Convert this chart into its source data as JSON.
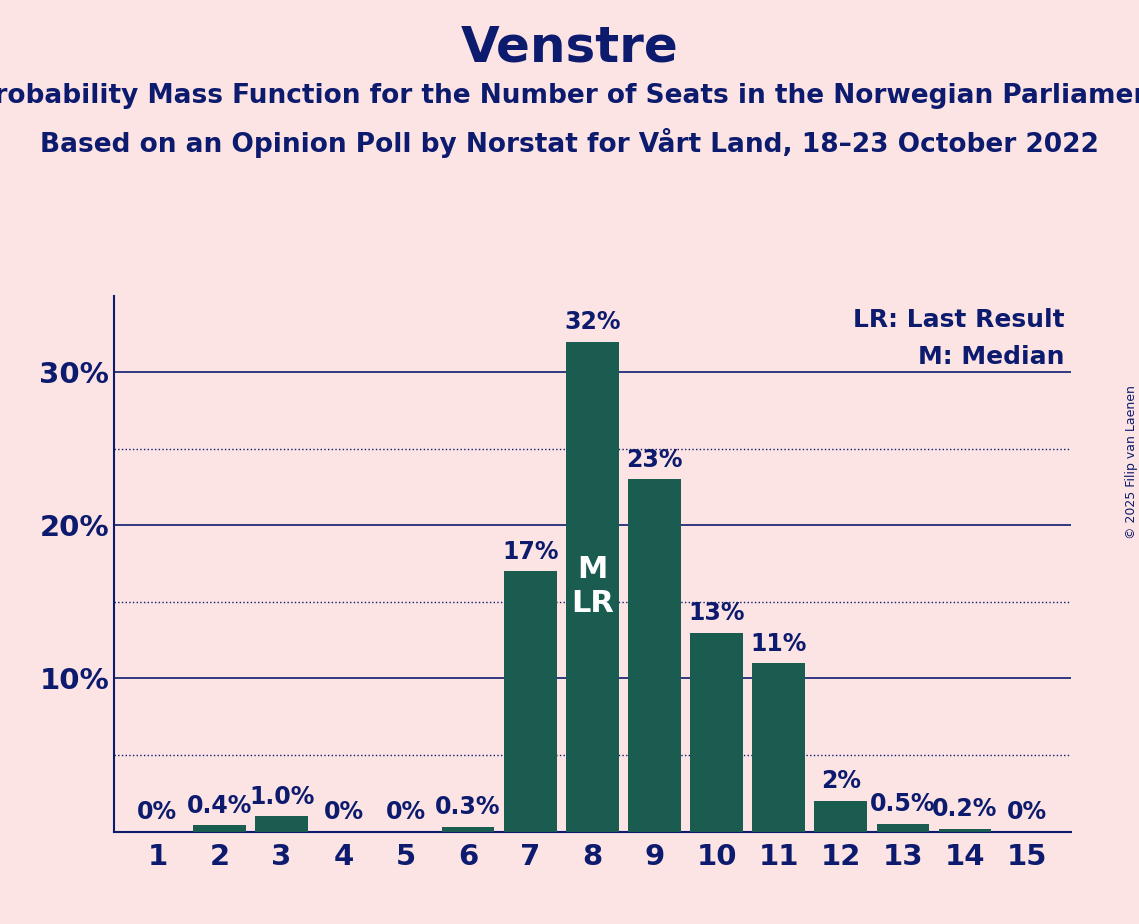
{
  "title": "Venstre",
  "subtitle1": "Probability Mass Function for the Number of Seats in the Norwegian Parliament",
  "subtitle2": "Based on an Opinion Poll by Norstat for Vårt Land, 18–23 October 2022",
  "copyright": "© 2025 Filip van Laenen",
  "seats": [
    1,
    2,
    3,
    4,
    5,
    6,
    7,
    8,
    9,
    10,
    11,
    12,
    13,
    14,
    15
  ],
  "probabilities": [
    0.0,
    0.4,
    1.0,
    0.0,
    0.0,
    0.3,
    17.0,
    32.0,
    23.0,
    13.0,
    11.0,
    2.0,
    0.5,
    0.2,
    0.0
  ],
  "labels": [
    "0%",
    "0.4%",
    "1.0%",
    "0%",
    "0%",
    "0.3%",
    "17%",
    "32%",
    "23%",
    "13%",
    "11%",
    "2%",
    "0.5%",
    "0.2%",
    "0%"
  ],
  "bar_color": "#1a5c50",
  "background_color": "#fce4e4",
  "text_color": "#0d1b6e",
  "title_fontsize": 36,
  "subtitle_fontsize": 19,
  "label_fontsize": 17,
  "tick_fontsize": 21,
  "ylim": [
    0,
    35
  ],
  "solid_yticks": [
    10,
    20,
    30
  ],
  "dotted_yticks": [
    5,
    15,
    25
  ],
  "median_seat": 8,
  "legend_lr": "LR: Last Result",
  "legend_m": "M: Median",
  "mlr_fontsize": 22,
  "legend_fontsize": 18,
  "copyright_fontsize": 9
}
